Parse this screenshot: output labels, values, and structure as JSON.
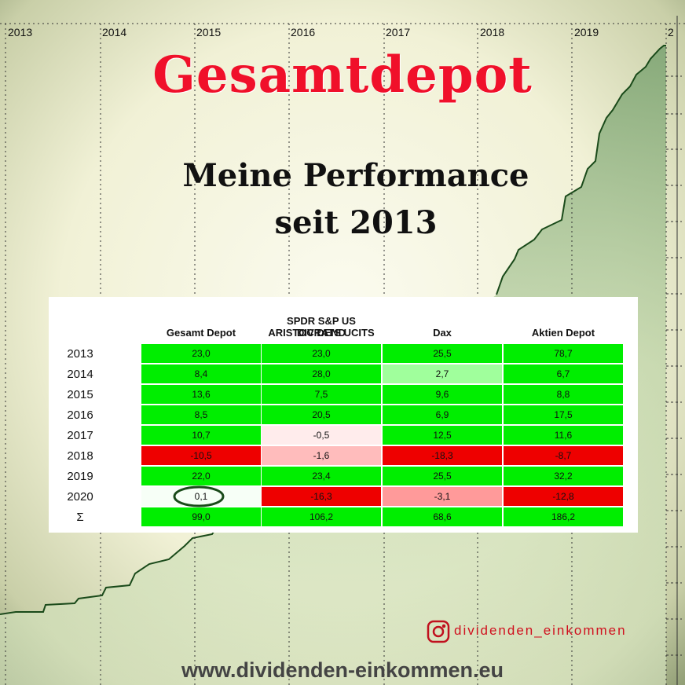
{
  "header": {
    "title": "Gesamtdepot",
    "subtitle_lines": [
      "Meine Performance",
      "seit 2013"
    ]
  },
  "timeline_labels": [
    "2013",
    "2014",
    "2015",
    "2016",
    "2017",
    "2018",
    "2019",
    "2"
  ],
  "table": {
    "columns": [
      [
        "Gesamt Depot"
      ],
      [
        "SPDR S&P US DIVIDEND",
        "ARISTOCRATS UCITS"
      ],
      [
        "Dax"
      ],
      [
        "Aktien Depot"
      ]
    ],
    "rows": [
      {
        "label": "2013",
        "cells": [
          "23,0",
          "23,0",
          "25,5",
          "78,7"
        ],
        "colors": [
          "#00ee00",
          "#00ee00",
          "#00ee00",
          "#00ee00"
        ]
      },
      {
        "label": "2014",
        "cells": [
          "8,4",
          "28,0",
          "2,7",
          "6,7"
        ],
        "colors": [
          "#00ee00",
          "#00ee00",
          "#a0ff9c",
          "#00ee00"
        ]
      },
      {
        "label": "2015",
        "cells": [
          "13,6",
          "7,5",
          "9,6",
          "8,8"
        ],
        "colors": [
          "#00ee00",
          "#00ee00",
          "#00ee00",
          "#00ee00"
        ]
      },
      {
        "label": "2016",
        "cells": [
          "8,5",
          "20,5",
          "6,9",
          "17,5"
        ],
        "colors": [
          "#00ee00",
          "#00ee00",
          "#00ee00",
          "#00ee00"
        ]
      },
      {
        "label": "2017",
        "cells": [
          "10,7",
          "-0,5",
          "12,5",
          "11,6"
        ],
        "colors": [
          "#00ee00",
          "#ffecec",
          "#00ee00",
          "#00ee00"
        ]
      },
      {
        "label": "2018",
        "cells": [
          "-10,5",
          "-1,6",
          "-18,3",
          "-8,7"
        ],
        "colors": [
          "#ee0000",
          "#ffbcbc",
          "#ee0000",
          "#ee0000"
        ]
      },
      {
        "label": "2019",
        "cells": [
          "22,0",
          "23,4",
          "25,5",
          "32,2"
        ],
        "colors": [
          "#00ee00",
          "#00ee00",
          "#00ee00",
          "#00ee00"
        ]
      },
      {
        "label": "2020",
        "cells": [
          "0,1",
          "-16,3",
          "-3,1",
          "-12,8"
        ],
        "colors": [
          "#f7fff7",
          "#ee0000",
          "#ff9a9a",
          "#ee0000"
        ]
      },
      {
        "label": "Σ",
        "cells": [
          "99,0",
          "106,2",
          "68,6",
          "186,2"
        ],
        "colors": [
          "#00ee00",
          "#00ee00",
          "#00ee00",
          "#00ee00"
        ]
      }
    ]
  },
  "footer": {
    "handle": "dividenden_einkommen",
    "url": "www.dividenden-einkommen.eu"
  }
}
